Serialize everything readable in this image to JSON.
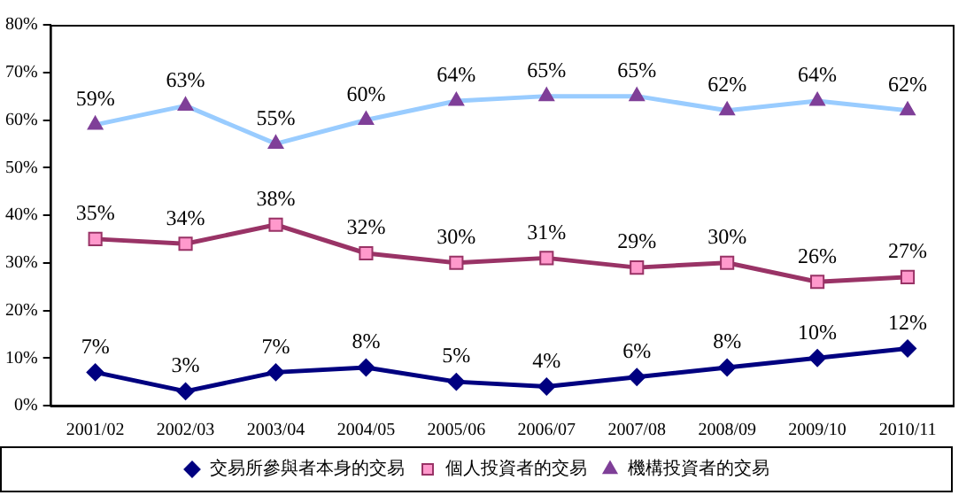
{
  "chart_data": {
    "type": "line",
    "categories": [
      "2001/02",
      "2002/03",
      "2003/04",
      "2004/05",
      "2005/06",
      "2006/07",
      "2007/08",
      "2008/09",
      "2009/10",
      "2010/11"
    ],
    "series": [
      {
        "name": "交易所參與者本身的交易",
        "color": "#000080",
        "marker": "diamond",
        "values": [
          7,
          3,
          7,
          8,
          5,
          4,
          6,
          8,
          10,
          12
        ],
        "value_labels": [
          "7%",
          "3%",
          "7%",
          "8%",
          "5%",
          "4%",
          "6%",
          "8%",
          "10%",
          "12%"
        ]
      },
      {
        "name": "個人投資者的交易",
        "color": "#993366",
        "marker": "square",
        "values": [
          35,
          34,
          38,
          32,
          30,
          31,
          29,
          30,
          26,
          27
        ],
        "value_labels": [
          "35%",
          "34%",
          "38%",
          "32%",
          "30%",
          "31%",
          "29%",
          "30%",
          "26%",
          "27%"
        ]
      },
      {
        "name": "機構投資者的交易",
        "color": "#99ccff",
        "marker": "triangle",
        "values": [
          59,
          63,
          55,
          60,
          64,
          65,
          65,
          62,
          64,
          62
        ],
        "value_labels": [
          "59%",
          "63%",
          "55%",
          "60%",
          "64%",
          "65%",
          "65%",
          "62%",
          "64%",
          "62%"
        ]
      }
    ],
    "ylim": [
      0,
      80
    ],
    "yticks": [
      {
        "value": 0,
        "label": "0%"
      },
      {
        "value": 10,
        "label": "10%"
      },
      {
        "value": 20,
        "label": "20%"
      },
      {
        "value": 30,
        "label": "30%"
      },
      {
        "value": 40,
        "label": "40%"
      },
      {
        "value": 50,
        "label": "50%"
      },
      {
        "value": 60,
        "label": "60%"
      },
      {
        "value": 70,
        "label": "70%"
      },
      {
        "value": 80,
        "label": "80%"
      }
    ],
    "grid": false,
    "legend": "bottom",
    "line_style": "solid"
  }
}
